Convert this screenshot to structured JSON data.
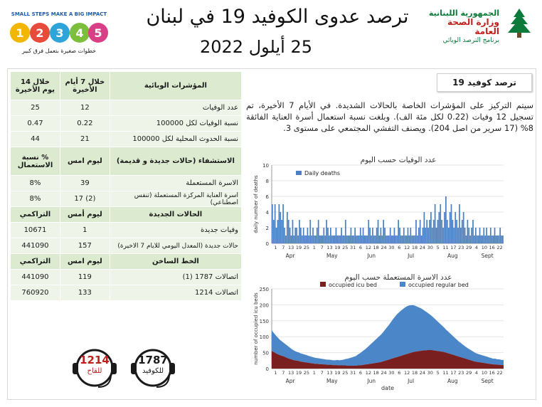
{
  "header": {
    "title": "ترصد عدوى الكوفيد 19 في لبنان",
    "date": "25 أيلول 2022",
    "ministry": {
      "line1": "الجمهورية اللبنانية",
      "line2": "وزارة الصحة العامة",
      "line3": "برنامج الترصد الوبائي"
    },
    "campaign": {
      "top": "SMALL STEPS MAKE A BIG IMPACT",
      "bottom": "خطوات صغيرة بتعمل فرق كبير"
    }
  },
  "table": {
    "head1": [
      "المؤشرات الوبائية",
      "خلال 7 أيام الأخيرة",
      "خلال 14 يوم الأخيرة"
    ],
    "rows1": [
      [
        "عدد الوفيات",
        "12",
        "25"
      ],
      [
        "نسبة الوفيات لكل 100000",
        "0.22",
        "0.47"
      ],
      [
        "نسبة الحدوث المحلية لكل 100000",
        "21",
        "44"
      ]
    ],
    "head2": [
      "الاستشفاء (حالات جديدة و قديمة)",
      "ليوم امس",
      "% نسبة الاستعمال"
    ],
    "rows2": [
      [
        "الاسرة المستعملة",
        "39",
        "8%"
      ],
      [
        "اسرة العناية المركزة المستعملة (تنفس اصطناعي)",
        "(2) 17",
        "8%"
      ]
    ],
    "head3": [
      "الحالات الجديدة",
      "ليوم أمس",
      "التراكمي"
    ],
    "rows3": [
      [
        "وفيات جديدة",
        "1",
        "10671"
      ],
      [
        "حالات جديدة (المعدل اليومي للايام 7 الاخيرة)",
        "157",
        "441090"
      ]
    ],
    "head4": [
      "الخط الساخن",
      "ليوم امس",
      "التراكمي"
    ],
    "rows4": [
      [
        "اتصالات 1787 (1)",
        "119",
        "441090"
      ],
      [
        "اتصالات 1214",
        "133",
        "760920"
      ]
    ]
  },
  "hotlines": [
    {
      "number": "1214",
      "label": "للقاح",
      "color": "#c0201c"
    },
    {
      "number": "1787",
      "label": "للكوفيد",
      "color": "#1a1a1a"
    }
  ],
  "panel": {
    "section_title": "ترصد كوفيد 19",
    "paragraph": "سيتم التركيز على المؤشرات الخاصة بالحالات الشديدة. في الأيام 7 الأخيرة، تم تسجيل 12 وفيات (0.22 لكل مئة الف). وبلغت نسبة استعمال أسرة العناية الفائقة 8% (17 سرير من اصل 204). ويصنف التفشي المجتمعي على مستوى 3."
  },
  "chart_data": [
    {
      "type": "bar",
      "title": "عدد الوفيات حسب اليوم",
      "ylabel": "daily number of deaths",
      "ylim": [
        0,
        10
      ],
      "yticks": [
        0,
        2,
        4,
        6,
        8,
        10
      ],
      "series": [
        {
          "name": "Daily deaths",
          "color": "#4a7fc1",
          "values": [
            5,
            3,
            5,
            2,
            3,
            5,
            4,
            3,
            5,
            2,
            1,
            4,
            3,
            2,
            1,
            3,
            1,
            2,
            2,
            1,
            3,
            2,
            1,
            2,
            1,
            1,
            2,
            1,
            3,
            1,
            2,
            1,
            1,
            2,
            3,
            1,
            1,
            1,
            2,
            1,
            3,
            2,
            1,
            2,
            1,
            1,
            1,
            2,
            1,
            1,
            1,
            2,
            1,
            1,
            3,
            1,
            1,
            1,
            2,
            1,
            1,
            2,
            1,
            1,
            1,
            2,
            1,
            2,
            1,
            1,
            1,
            3,
            2,
            1,
            2,
            1,
            1,
            2,
            3,
            1,
            2,
            1,
            3,
            2,
            1,
            1,
            1,
            2,
            1,
            1,
            2,
            1,
            1,
            3,
            2,
            1,
            1,
            2,
            1,
            1,
            2,
            1,
            2,
            1,
            1,
            1,
            3,
            1,
            2,
            3,
            1,
            2,
            4,
            2,
            3,
            2,
            3,
            4,
            2,
            3,
            5,
            2,
            3,
            4,
            5,
            3,
            2,
            4,
            6,
            3,
            2,
            4,
            5,
            3,
            2,
            4,
            3,
            2,
            5,
            2,
            3,
            4,
            2,
            1,
            3,
            2,
            1,
            2,
            3,
            1,
            2,
            1,
            1,
            2,
            1,
            1,
            2,
            1,
            2,
            1,
            1,
            2,
            1,
            1,
            2,
            1,
            1,
            1,
            2,
            1,
            1
          ]
        }
      ],
      "x_day_labels": [
        "1",
        "7",
        "13",
        "19",
        "25",
        "1",
        "7",
        "13",
        "19",
        "25",
        "31",
        "6",
        "12",
        "18",
        "24",
        "30",
        "6",
        "12",
        "18",
        "24",
        "30",
        "5",
        "11",
        "17",
        "23",
        "29",
        "4",
        "10",
        "16",
        "22"
      ],
      "x_month_labels": [
        "Apr",
        "May",
        "Jun",
        "Jul",
        "Aug",
        "Sept"
      ]
    },
    {
      "type": "area",
      "title": "عدد الاسرة المستعملة حسب اليوم",
      "xlabel": "date",
      "ylabel": "number of occupied icu beds",
      "ylim": [
        0,
        250
      ],
      "yticks": [
        0,
        50,
        100,
        150,
        200,
        250
      ],
      "series": [
        {
          "name": "occupied icu bed",
          "color": "#7a1f1f",
          "values": [
            55,
            52,
            48,
            45,
            42,
            40,
            38,
            35,
            32,
            30,
            28,
            26,
            25,
            24,
            22,
            21,
            20,
            19,
            18,
            17,
            16,
            15,
            15,
            14,
            14,
            13,
            13,
            12,
            12,
            12,
            11,
            11,
            11,
            10,
            10,
            10,
            10,
            9,
            9,
            9,
            9,
            9,
            10,
            10,
            11,
            12,
            13,
            14,
            15,
            16,
            17,
            18,
            19,
            20,
            22,
            24,
            26,
            28,
            30,
            32,
            34,
            36,
            38,
            40,
            42,
            44,
            46,
            48,
            50,
            52,
            53,
            54,
            55,
            56,
            57,
            57,
            58,
            58,
            58,
            57,
            56,
            55,
            54,
            53,
            52,
            50,
            48,
            46,
            44,
            42,
            40,
            38,
            36,
            34,
            32,
            30,
            28,
            26,
            24,
            22,
            21,
            20,
            19,
            18,
            17,
            16,
            15,
            14,
            13,
            13,
            12,
            12,
            11,
            11
          ]
        },
        {
          "name": "occupied regular bed",
          "color": "#4a86c8",
          "values": [
            65,
            60,
            56,
            52,
            48,
            45,
            42,
            40,
            38,
            35,
            32,
            30,
            28,
            27,
            26,
            25,
            24,
            23,
            22,
            21,
            20,
            19,
            18,
            18,
            17,
            17,
            16,
            16,
            16,
            15,
            15,
            15,
            16,
            16,
            17,
            18,
            20,
            22,
            24,
            26,
            28,
            30,
            34,
            38,
            42,
            46,
            50,
            55,
            60,
            65,
            70,
            75,
            80,
            85,
            90,
            96,
            102,
            108,
            115,
            122,
            128,
            134,
            138,
            142,
            145,
            148,
            150,
            150,
            149,
            147,
            144,
            140,
            136,
            132,
            127,
            122,
            117,
            112,
            107,
            102,
            97,
            92,
            87,
            82,
            77,
            72,
            68,
            64,
            60,
            56,
            52,
            48,
            45,
            42,
            39,
            36,
            34,
            32,
            30,
            28,
            26,
            25,
            24,
            23,
            22,
            21,
            20,
            19,
            18,
            18,
            17,
            17,
            16,
            16
          ]
        }
      ],
      "x_day_labels": [
        "1",
        "7",
        "13",
        "19",
        "25",
        "1",
        "7",
        "13",
        "19",
        "25",
        "31",
        "6",
        "12",
        "18",
        "24",
        "30",
        "6",
        "12",
        "18",
        "24",
        "30",
        "5",
        "11",
        "17",
        "23",
        "29",
        "4",
        "10",
        "16",
        "22"
      ],
      "x_month_labels": [
        "Apr",
        "May",
        "Jun",
        "Jul",
        "Aug",
        "Sept"
      ]
    }
  ]
}
